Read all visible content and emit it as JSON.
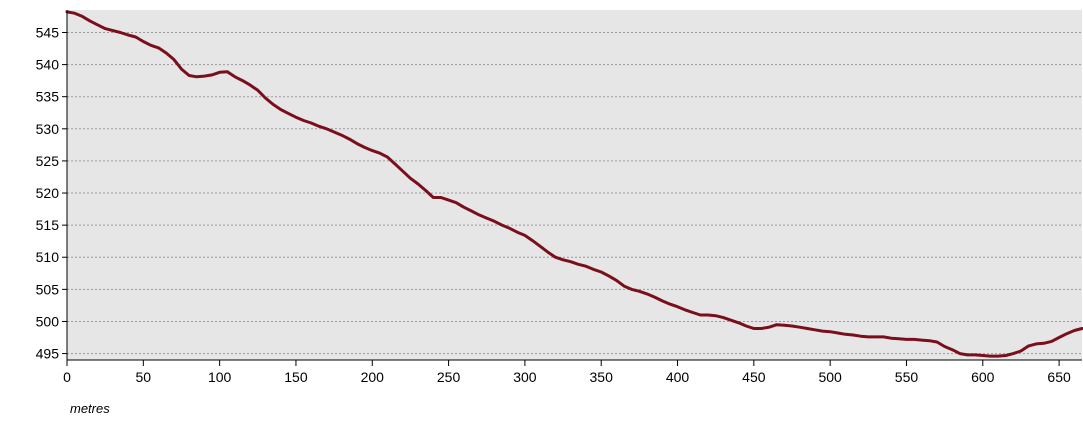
{
  "chart_data": {
    "type": "line",
    "title": "",
    "xlabel": "metres",
    "ylabel": "",
    "xlim": [
      0,
      665
    ],
    "ylim": [
      494,
      548.5
    ],
    "x_ticks": [
      0,
      50,
      100,
      150,
      200,
      250,
      300,
      350,
      400,
      450,
      500,
      550,
      600,
      650
    ],
    "y_ticks": [
      495,
      500,
      505,
      510,
      515,
      520,
      525,
      530,
      535,
      540,
      545
    ],
    "grid": "horizontal",
    "legend": "none",
    "colors": {
      "line": "#7a0f1c",
      "plot_background": "#e6e6e6",
      "gridline": "#9a9a9a",
      "axis": "#000000"
    },
    "series": [
      {
        "x": [
          0,
          5,
          10,
          15,
          20,
          25,
          30,
          35,
          40,
          45,
          50,
          55,
          60,
          65,
          70,
          75,
          80,
          85,
          90,
          95,
          100,
          105,
          110,
          115,
          120,
          125,
          130,
          135,
          140,
          145,
          150,
          155,
          160,
          165,
          170,
          175,
          180,
          185,
          190,
          195,
          200,
          205,
          210,
          215,
          220,
          225,
          230,
          235,
          240,
          245,
          250,
          255,
          260,
          265,
          270,
          275,
          280,
          285,
          290,
          295,
          300,
          305,
          310,
          315,
          320,
          325,
          330,
          335,
          340,
          345,
          350,
          355,
          360,
          365,
          370,
          375,
          380,
          385,
          390,
          395,
          400,
          405,
          410,
          415,
          420,
          425,
          430,
          435,
          440,
          445,
          450,
          455,
          460,
          465,
          470,
          475,
          480,
          485,
          490,
          495,
          500,
          505,
          510,
          515,
          520,
          525,
          530,
          535,
          540,
          545,
          550,
          555,
          560,
          565,
          570,
          575,
          580,
          585,
          590,
          595,
          600,
          605,
          610,
          615,
          620,
          625,
          630,
          635,
          640,
          645,
          650,
          655,
          660,
          665
        ],
        "y": [
          548.2,
          548.0,
          547.5,
          546.8,
          546.2,
          545.6,
          545.3,
          545.0,
          544.6,
          544.3,
          543.6,
          543.0,
          542.6,
          541.8,
          540.8,
          539.3,
          538.3,
          538.1,
          538.2,
          538.4,
          538.8,
          538.9,
          538.1,
          537.5,
          536.8,
          536.0,
          534.8,
          533.8,
          533.0,
          532.4,
          531.8,
          531.3,
          530.9,
          530.4,
          530.0,
          529.5,
          529.0,
          528.4,
          527.7,
          527.1,
          526.6,
          526.2,
          525.6,
          524.5,
          523.4,
          522.3,
          521.4,
          520.4,
          519.3,
          519.3,
          518.9,
          518.5,
          517.8,
          517.2,
          516.6,
          516.1,
          515.6,
          515.0,
          514.5,
          513.9,
          513.4,
          512.6,
          511.7,
          510.8,
          510.0,
          509.6,
          509.3,
          508.9,
          508.6,
          508.1,
          507.7,
          507.1,
          506.4,
          505.5,
          505.0,
          504.7,
          504.3,
          503.8,
          503.2,
          502.7,
          502.3,
          501.8,
          501.4,
          501.0,
          501.0,
          500.9,
          500.6,
          500.2,
          499.8,
          499.3,
          498.9,
          498.9,
          499.1,
          499.5,
          499.4,
          499.3,
          499.1,
          498.9,
          498.7,
          498.5,
          498.4,
          498.2,
          498.0,
          497.9,
          497.7,
          497.6,
          497.6,
          497.6,
          497.4,
          497.3,
          497.2,
          497.2,
          497.1,
          497.0,
          496.8,
          496.1,
          495.6,
          495.0,
          494.8,
          494.8,
          494.7,
          494.6,
          494.6,
          494.7,
          495.0,
          495.4,
          496.2,
          496.5,
          496.6,
          496.9,
          497.5,
          498.1,
          498.6,
          498.9
        ]
      }
    ]
  }
}
